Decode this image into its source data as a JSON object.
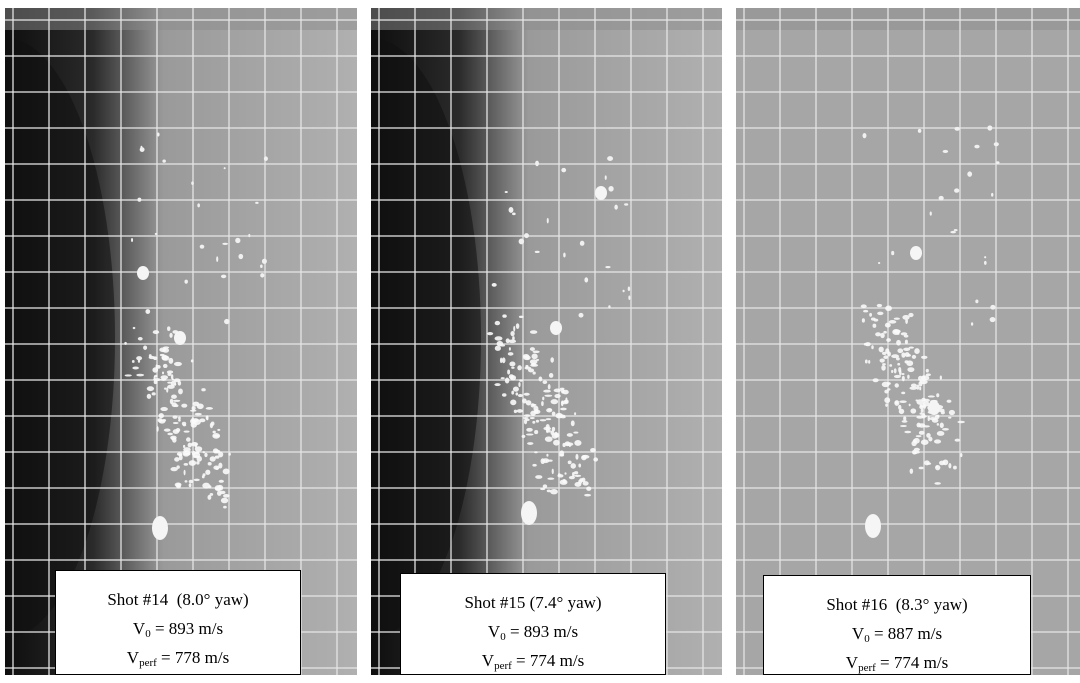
{
  "panels": [
    {
      "caption": {
        "shot": "Shot #14  (8.0° yaw)",
        "v0": {
          "symbol": "V",
          "subscript": "0",
          "text": "= 893 m/s"
        },
        "vperf": {
          "symbol": "V",
          "subscript": "perf",
          "text": "= 778 m/s"
        }
      }
    },
    {
      "caption": {
        "shot": "Shot #15 (7.4° yaw)",
        "v0": {
          "symbol": "V",
          "subscript": "0",
          "text": "= 893 m/s"
        },
        "vperf": {
          "symbol": "V",
          "subscript": "perf",
          "text": "= 774 m/s"
        }
      }
    },
    {
      "caption": {
        "shot": "Shot #16  (8.3° yaw)",
        "v0": {
          "symbol": "V",
          "subscript": "0",
          "text": "= 887 m/s"
        },
        "vperf": {
          "symbol": "V",
          "subscript": "perf",
          "text": "= 774 m/s"
        }
      }
    }
  ]
}
